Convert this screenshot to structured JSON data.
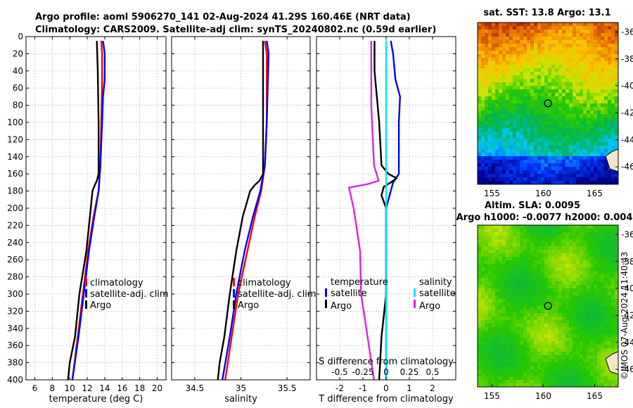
{
  "header": {
    "line1": "Argo profile: aoml 5906270_141 02-Aug-2024 41.29S 160.46E (NRT data)",
    "line2": "Climatology: CARS2009. Satellite-adj clim: synTS_20240802.nc (0.59d earlier)"
  },
  "footer": {
    "stamp": "©IMOS 07-Aug-2024 11:40:43"
  },
  "colors": {
    "climatology": "#ff0000",
    "satellite": "#0000ff",
    "argo": "#000000",
    "sal_satellite": "#00e5ff",
    "sal_argo": "#e020e0",
    "zero_line": "#00c8ff"
  },
  "chart_data": [
    {
      "type": "line",
      "id": "temperature",
      "xlabel": "temperature (deg C)",
      "xlim": [
        5,
        21
      ],
      "xticks": [
        6,
        8,
        10,
        12,
        14,
        16,
        18,
        20
      ],
      "ylim": [
        0,
        400
      ],
      "yticks": [
        0,
        20,
        40,
        60,
        80,
        100,
        120,
        140,
        160,
        180,
        200,
        220,
        240,
        260,
        280,
        300,
        320,
        340,
        360,
        380,
        400
      ],
      "legend": [
        "climatology",
        "satellite-adj. clim",
        "Argo"
      ],
      "series": [
        {
          "name": "climatology",
          "points": [
            [
              13.6,
              5
            ],
            [
              13.7,
              20
            ],
            [
              13.7,
              50
            ],
            [
              13.6,
              100
            ],
            [
              13.5,
              150
            ],
            [
              13.3,
              180
            ],
            [
              12.7,
              210
            ],
            [
              12.1,
              250
            ],
            [
              11.5,
              300
            ],
            [
              10.9,
              350
            ],
            [
              10.3,
              400
            ]
          ]
        },
        {
          "name": "satellite-adj. clim",
          "points": [
            [
              13.8,
              5
            ],
            [
              14.0,
              20
            ],
            [
              14.0,
              50
            ],
            [
              13.8,
              70
            ],
            [
              13.7,
              100
            ],
            [
              13.5,
              150
            ],
            [
              13.3,
              180
            ],
            [
              12.8,
              210
            ],
            [
              12.2,
              250
            ],
            [
              11.6,
              300
            ],
            [
              11.0,
              350
            ],
            [
              10.3,
              400
            ]
          ]
        },
        {
          "name": "Argo",
          "points": [
            [
              13.1,
              5
            ],
            [
              13.2,
              40
            ],
            [
              13.3,
              100
            ],
            [
              13.3,
              160
            ],
            [
              13.1,
              168
            ],
            [
              12.9,
              172
            ],
            [
              12.6,
              180
            ],
            [
              12.3,
              210
            ],
            [
              11.9,
              250
            ],
            [
              11.1,
              300
            ],
            [
              10.6,
              350
            ],
            [
              10.0,
              380
            ],
            [
              9.8,
              400
            ]
          ]
        }
      ]
    },
    {
      "type": "line",
      "id": "salinity",
      "xlabel": "salinity",
      "xlim": [
        34.25,
        35.75
      ],
      "xticks": [
        34.5,
        35,
        35.5
      ],
      "ylim": [
        0,
        400
      ],
      "legend": [
        "climatology",
        "satellite-adj. clim",
        "Argo"
      ],
      "series": [
        {
          "name": "climatology",
          "points": [
            [
              35.26,
              5
            ],
            [
              35.28,
              20
            ],
            [
              35.28,
              60
            ],
            [
              35.28,
              100
            ],
            [
              35.26,
              150
            ],
            [
              35.22,
              180
            ],
            [
              35.15,
              210
            ],
            [
              35.07,
              250
            ],
            [
              34.97,
              300
            ],
            [
              34.9,
              350
            ],
            [
              34.83,
              400
            ]
          ]
        },
        {
          "name": "satellite-adj. clim",
          "points": [
            [
              35.28,
              5
            ],
            [
              35.3,
              20
            ],
            [
              35.29,
              60
            ],
            [
              35.28,
              100
            ],
            [
              35.26,
              150
            ],
            [
              35.21,
              180
            ],
            [
              35.13,
              210
            ],
            [
              35.04,
              250
            ],
            [
              34.95,
              300
            ],
            [
              34.88,
              350
            ],
            [
              34.8,
              400
            ]
          ]
        },
        {
          "name": "Argo",
          "points": [
            [
              35.24,
              5
            ],
            [
              35.24,
              60
            ],
            [
              35.24,
              100
            ],
            [
              35.24,
              160
            ],
            [
              35.2,
              168
            ],
            [
              35.15,
              173
            ],
            [
              35.1,
              180
            ],
            [
              35.02,
              210
            ],
            [
              34.95,
              250
            ],
            [
              34.88,
              300
            ],
            [
              34.82,
              350
            ],
            [
              34.77,
              380
            ],
            [
              34.75,
              400
            ]
          ]
        }
      ]
    },
    {
      "type": "line",
      "id": "differences",
      "xlabel": "T difference from climatology",
      "xlabel_top": "S difference from climatology",
      "xlim": [
        -3,
        3
      ],
      "xticks": [
        -2,
        -1,
        0,
        1,
        2
      ],
      "xticks_s": [
        "-0.5",
        "-0.25",
        "0",
        "0.25",
        "0.5"
      ],
      "xticks_s_values": [
        -0.5,
        -0.25,
        0,
        0.25,
        0.5
      ],
      "s_scale": 4,
      "ylim": [
        0,
        400
      ],
      "legend": {
        "temperature": [
          "satellite",
          "Argo"
        ],
        "salinity": [
          "satellite",
          "Argo"
        ]
      },
      "legend_titles": {
        "temperature": "temperature",
        "salinity": "salinity"
      },
      "series": [
        {
          "name": "T satellite",
          "points": [
            [
              0.2,
              5
            ],
            [
              0.3,
              20
            ],
            [
              0.4,
              50
            ],
            [
              0.6,
              70
            ],
            [
              0.55,
              100
            ],
            [
              0.55,
              160
            ],
            [
              0.3,
              170
            ],
            [
              0.1,
              190
            ],
            [
              0.0,
              200
            ],
            [
              0.0,
              300
            ],
            [
              0.0,
              400
            ]
          ]
        },
        {
          "name": "T Argo",
          "points": [
            [
              -0.5,
              5
            ],
            [
              -0.5,
              40
            ],
            [
              -0.3,
              100
            ],
            [
              -0.2,
              150
            ],
            [
              0.1,
              160
            ],
            [
              0.45,
              165
            ],
            [
              0.2,
              170
            ],
            [
              -0.1,
              175
            ],
            [
              -0.2,
              185
            ],
            [
              0.0,
              200
            ],
            [
              0.0,
              300
            ],
            [
              -0.2,
              350
            ],
            [
              -0.3,
              400
            ]
          ]
        },
        {
          "name": "S satellite",
          "points": [
            [
              0.0,
              5
            ],
            [
              0.0,
              400
            ]
          ]
        },
        {
          "name": "S Argo",
          "points": [
            [
              -0.16,
              5
            ],
            [
              -0.16,
              80
            ],
            [
              -0.13,
              150
            ],
            [
              -0.08,
              168
            ],
            [
              -0.2,
              172
            ],
            [
              -0.4,
              176
            ],
            [
              -0.35,
              200
            ],
            [
              -0.28,
              250
            ],
            [
              -0.27,
              300
            ],
            [
              -0.2,
              350
            ],
            [
              -0.13,
              400
            ]
          ]
        }
      ]
    },
    {
      "type": "heatmap",
      "id": "sst_map",
      "title": "sat. SST: 13.8 Argo: 13.1",
      "xlim": [
        153.6,
        167.3
      ],
      "ylim": [
        -47.3,
        -35.3
      ],
      "xticks": [
        155,
        160,
        165
      ],
      "yticks": [
        -36,
        -38,
        -40,
        -42,
        -44,
        -46
      ],
      "argo_position": [
        160.46,
        -41.29
      ]
    },
    {
      "type": "heatmap",
      "id": "sla_map",
      "title1": "Altim. SLA: 0.0095",
      "title2": "Argo h1000: -0.0077 h2000: 0.004",
      "xlim": [
        153.6,
        167.3
      ],
      "ylim": [
        -47.3,
        -35.3
      ],
      "xticks": [
        155,
        160,
        165
      ],
      "yticks": [
        -36,
        -38,
        -40,
        -42,
        -44,
        -46
      ],
      "argo_position": [
        160.46,
        -41.29
      ]
    }
  ]
}
